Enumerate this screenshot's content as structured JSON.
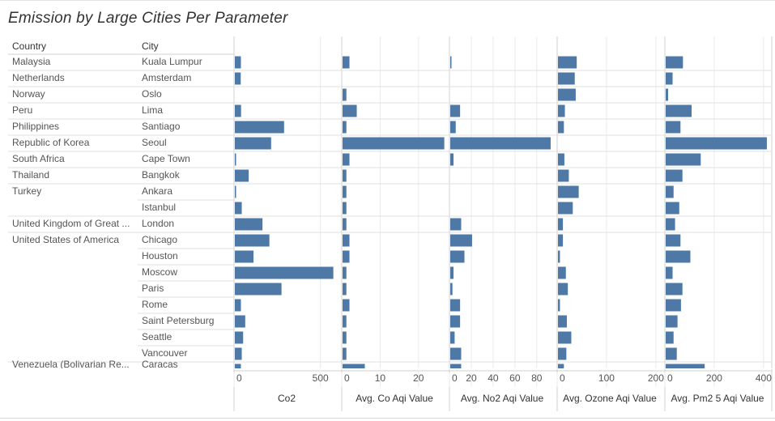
{
  "title": "Emission by Large Cities Per Parameter",
  "colors": {
    "bar": "#4e79a7",
    "gridline": "#ebebeb",
    "rowline": "#e0e0e0",
    "axisline": "#d0d0d0",
    "text": "#555555",
    "header": "#333333"
  },
  "chart_data": {
    "type": "bar",
    "orientation": "horizontal",
    "title": "Emission by Large Cities Per Parameter",
    "row_headers": [
      "Country",
      "City"
    ],
    "country_groups": [
      {
        "country": "Malaysia",
        "cities": [
          "Kuala Lumpur"
        ]
      },
      {
        "country": "Netherlands",
        "cities": [
          "Amsterdam"
        ]
      },
      {
        "country": "Norway",
        "cities": [
          "Oslo"
        ]
      },
      {
        "country": "Peru",
        "cities": [
          "Lima"
        ]
      },
      {
        "country": "Philippines",
        "cities": [
          "Santiago"
        ]
      },
      {
        "country": "Republic of Korea",
        "cities": [
          "Seoul"
        ]
      },
      {
        "country": "South Africa",
        "cities": [
          "Cape Town"
        ]
      },
      {
        "country": "Thailand",
        "cities": [
          "Bangkok"
        ]
      },
      {
        "country": "Turkey",
        "cities": [
          "Ankara",
          "Istanbul"
        ]
      },
      {
        "country": "United Kingdom of Great ...",
        "cities": [
          "London"
        ]
      },
      {
        "country": "United States of America",
        "cities": [
          "Chicago",
          "Houston",
          "Moscow",
          "Paris",
          "Rome",
          "Saint Petersburg",
          "Seattle",
          "Vancouver"
        ]
      }
    ],
    "categories": [
      "Kuala Lumpur",
      "Amsterdam",
      "Oslo",
      "Lima",
      "Santiago",
      "Seoul",
      "Cape Town",
      "Bangkok",
      "Ankara",
      "Istanbul",
      "London",
      "Chicago",
      "Houston",
      "Moscow",
      "Paris",
      "Rome",
      "Saint Petersburg",
      "Seattle",
      "Vancouver"
    ],
    "series": [
      {
        "name": "Co2",
        "xlim": [
          0,
          600
        ],
        "ticks": [
          0,
          500
        ],
        "tick_labels": [
          "0",
          "500"
        ],
        "values": [
          35,
          34,
          0,
          36,
          285,
          210,
          6,
          80,
          6,
          40,
          160,
          200,
          108,
          570,
          270,
          35,
          60,
          48,
          40
        ]
      },
      {
        "name": "Avg. Co Aqi Value",
        "xlim": [
          0,
          27
        ],
        "ticks": [
          0,
          10,
          20
        ],
        "tick_labels": [
          "0",
          "10",
          "20"
        ],
        "values": [
          1.8,
          0,
          1.0,
          3.7,
          1.0,
          26.5,
          1.8,
          1.0,
          1.0,
          1.0,
          1.0,
          1.8,
          1.8,
          1.0,
          1.0,
          1.8,
          1.0,
          1.0,
          1.0
        ]
      },
      {
        "name": "Avg. No2 Aqi Value",
        "xlim": [
          0,
          95
        ],
        "ticks": [
          0,
          20,
          40,
          60,
          80
        ],
        "tick_labels": [
          "0",
          "20",
          "40",
          "60",
          "80"
        ],
        "values": [
          1,
          0,
          0,
          9,
          5,
          92,
          3,
          0,
          0,
          0,
          10,
          20,
          13,
          3,
          2,
          9,
          9,
          4,
          10
        ]
      },
      {
        "name": "Avg. Ozone Aqi Value",
        "xlim": [
          0,
          210
        ],
        "ticks": [
          0,
          100,
          200
        ],
        "tick_labels": [
          "0",
          "100",
          "200"
        ],
        "values": [
          38,
          34,
          36,
          14,
          12,
          0,
          13,
          22,
          42,
          30,
          10,
          10,
          4,
          16,
          20,
          4,
          18,
          27,
          17
        ]
      },
      {
        "name": "Avg. Pm2 5 Aqi Value",
        "xlim": [
          0,
          420
        ],
        "ticks": [
          0,
          200,
          400
        ],
        "tick_labels": [
          "0",
          "200",
          "400"
        ],
        "values": [
          70,
          28,
          10,
          105,
          60,
          410,
          142,
          68,
          32,
          55,
          38,
          60,
          100,
          28,
          68,
          62,
          48,
          32,
          45
        ]
      }
    ],
    "cut_off_row": {
      "country": "Venezuela (Bolivarian Re...",
      "city": "Caracas",
      "values": [
        35,
        5.8,
        10,
        12,
        158
      ]
    },
    "grid": true,
    "legend": "none"
  }
}
